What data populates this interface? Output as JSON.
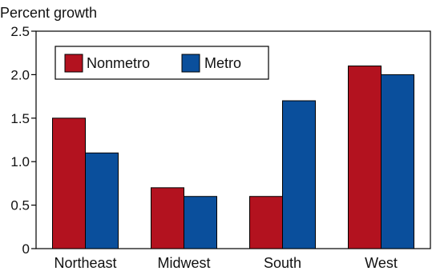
{
  "chart_data": {
    "type": "bar",
    "ylabel": "Percent growth",
    "categories": [
      "Northeast",
      "Midwest",
      "South",
      "West"
    ],
    "series": [
      {
        "name": "Nonmetro",
        "values": [
          1.5,
          0.7,
          0.6,
          2.1
        ],
        "color": "#b3121f"
      },
      {
        "name": "Metro",
        "values": [
          1.1,
          0.6,
          1.7,
          2.0
        ],
        "color": "#0a4f9c"
      }
    ],
    "ylim": [
      0,
      2.5
    ],
    "yticks": [
      0,
      0.5,
      1.0,
      1.5,
      2.0,
      2.5
    ],
    "ytick_labels": [
      "0",
      "0.5",
      "1.0",
      "1.5",
      "2.0",
      "2.5"
    ],
    "grid": false,
    "legend_position": "top-left"
  }
}
